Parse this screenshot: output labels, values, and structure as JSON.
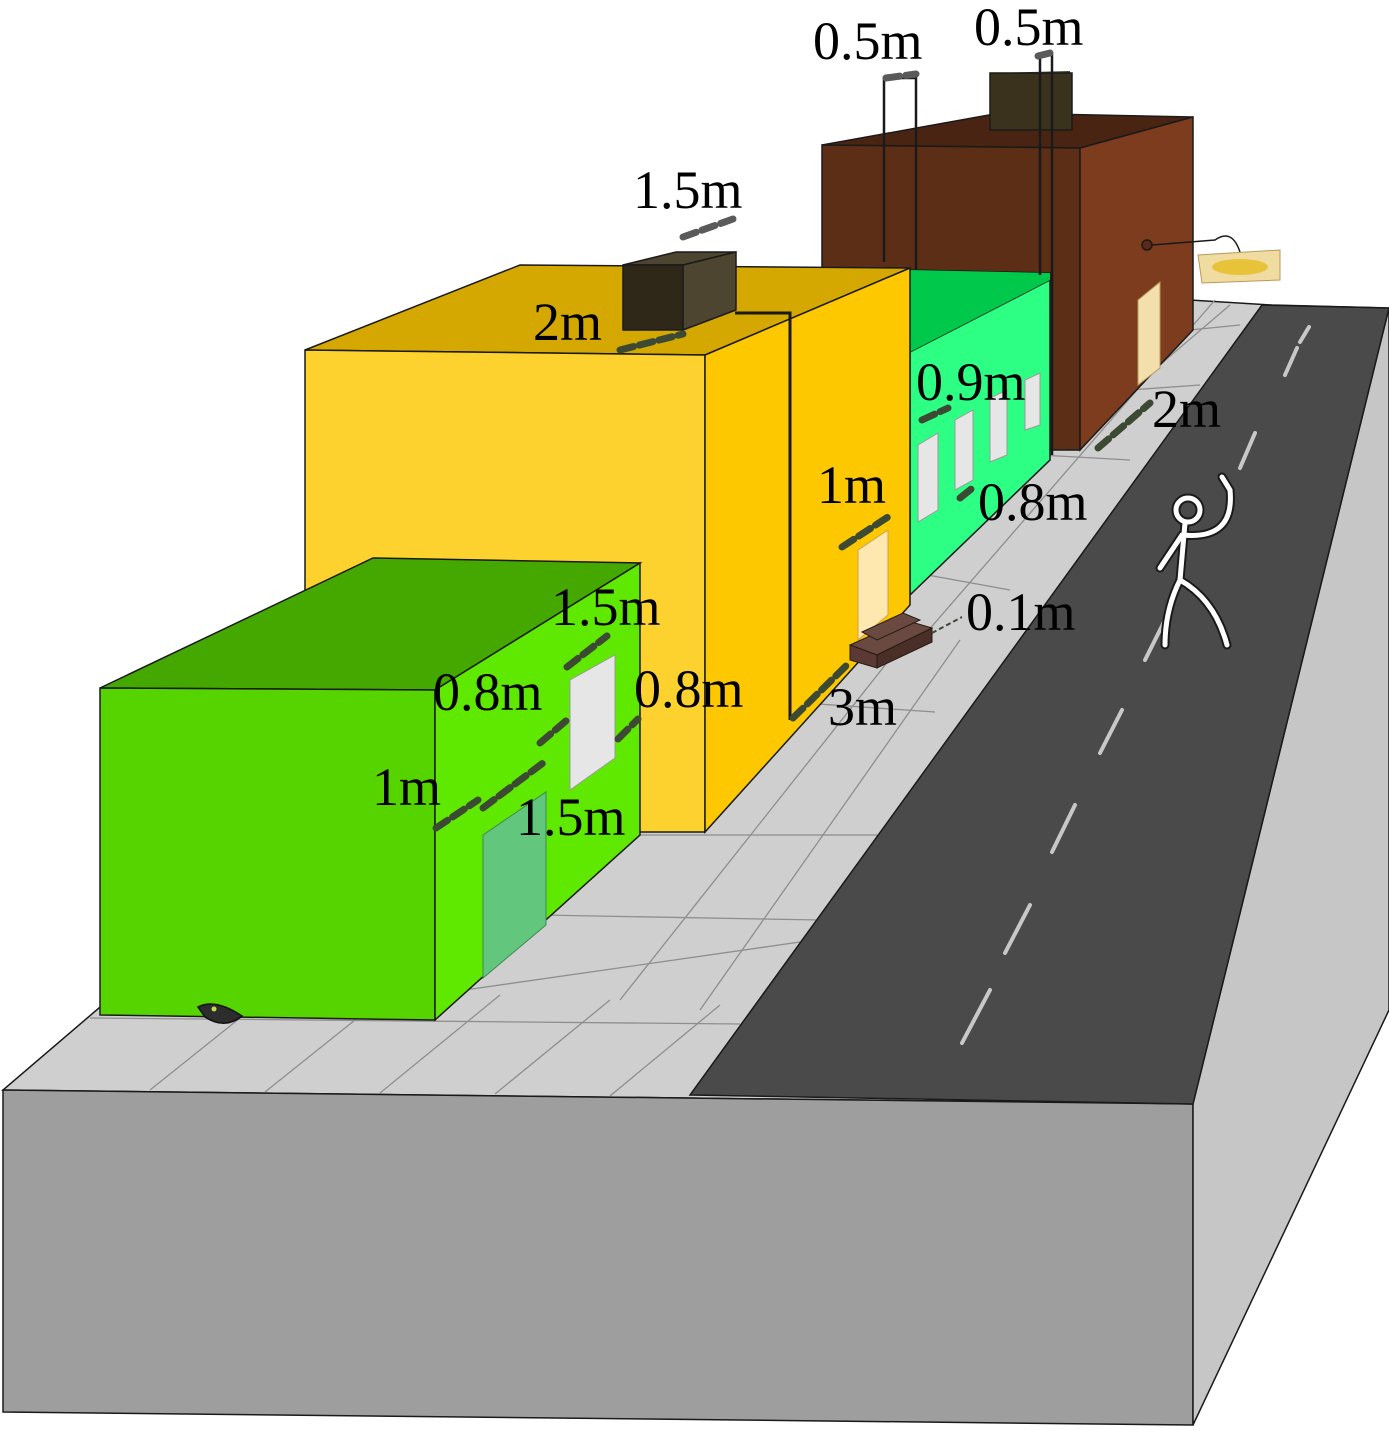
{
  "labels": {
    "ac_width_1": "0.5m",
    "ac_width_2": "0.5m",
    "ac_length_yellow": "1.5m",
    "ac_depth_yellow": "2m",
    "green_window_width": "0.9m",
    "brown_corner_width": "2m",
    "door_width_yellow": "1m",
    "green_window_gap": "0.8m",
    "step_height": "0.1m",
    "sidewalk_gap": "3m",
    "front_window_height": "1.5m",
    "front_window_sill": "0.8m",
    "front_window_width": "0.8m",
    "front_door_offset": "1m",
    "front_door_width": "1.5m"
  },
  "colors": {
    "ground_side": "#9e9e9e",
    "ground_top": "#cfcfcf",
    "road": "#4a4a4a",
    "road_lane_mark": "#c8c8c8",
    "green_front": "#5fe000",
    "green_side": "#56d400",
    "green_roof": "#45a800",
    "yellow_front": "#fed22e",
    "yellow_side": "#fec800",
    "yellow_roof": "#d4a800",
    "mint_building": "#2cff84",
    "brown_front": "#5c2e16",
    "brown_side": "#7d3c1e",
    "ac_unit": "#3a321c",
    "window": "#e6e6e6",
    "door_glass": "#62c67c",
    "stick_figure": "#ffffff"
  },
  "icons": {
    "stick_figure": "waving-person-icon",
    "hanging_sign": "bread-shop-sign-icon",
    "bowl": "pet-bowl-icon"
  }
}
